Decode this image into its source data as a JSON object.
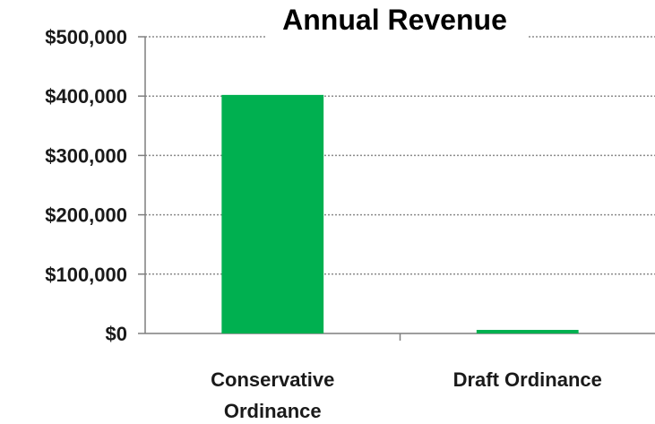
{
  "chart_data": {
    "type": "bar",
    "title": "Annual Revenue",
    "xlabel": "",
    "ylabel": "",
    "categories": [
      "Conservative Ordinance",
      "Draft Ordinance"
    ],
    "category_lines": [
      [
        "Conservative",
        "Ordinance"
      ],
      [
        "Draft Ordinance"
      ]
    ],
    "values": [
      402000,
      6000
    ],
    "ylim": [
      0,
      500000
    ],
    "yticks": [
      0,
      100000,
      200000,
      300000,
      400000,
      500000
    ],
    "ytick_labels": [
      "$0",
      "$100,000",
      "$200,000",
      "$300,000",
      "$400,000",
      "$500,000"
    ],
    "grid": true,
    "legend": "none",
    "bar_color": "#00b050",
    "grid_color": "#8c8c8c",
    "axis_color": "#7f7f7f"
  }
}
